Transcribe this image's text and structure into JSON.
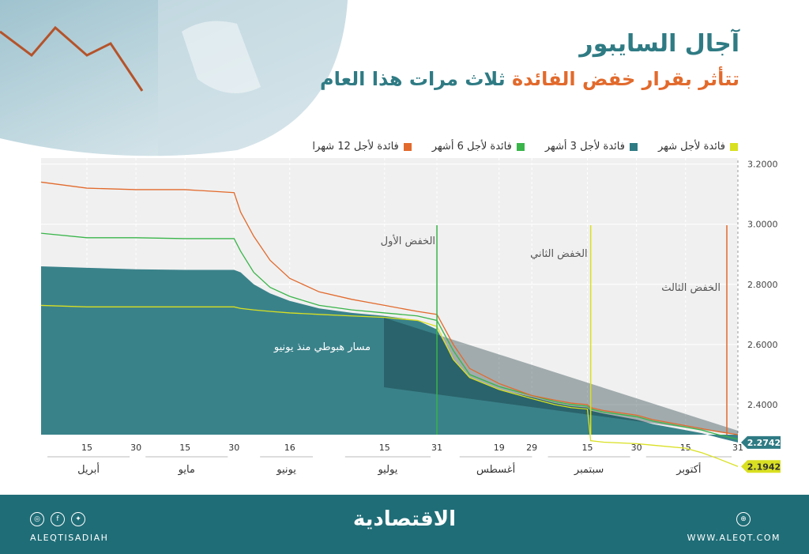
{
  "header": {
    "title": "آجال السايبور",
    "subtitle_accent": "تتأثر بقرار خفض الفائدة",
    "subtitle_rest": "ثلاث مرات هذا العام"
  },
  "colors": {
    "one_month": "#d9e021",
    "three_months": "#2f7b84",
    "six_months": "#39b54a",
    "twelve_months": "#e26a2c"
  },
  "chart_data": {
    "type": "line",
    "title": "",
    "ylim": [
      2.3,
      3.22
    ],
    "y_ticks": [
      "3.2000",
      "3.0000",
      "2.8000",
      "2.6000",
      "2.4000"
    ],
    "day_ticks": [
      "15",
      "30",
      "15",
      "30",
      "16",
      "15",
      "31",
      "19",
      "29",
      "15",
      "30",
      "15",
      "31"
    ],
    "months": [
      "أبريل",
      "مايو",
      "يونيو",
      "يوليو",
      "أغسطس",
      "سبتمبر",
      "أكتوبر"
    ],
    "x": [
      "04-01",
      "04-15",
      "04-30",
      "05-15",
      "05-30",
      "06-01",
      "06-05",
      "06-10",
      "06-16",
      "06-25",
      "07-05",
      "07-15",
      "07-25",
      "07-31",
      "08-05",
      "08-10",
      "08-19",
      "08-29",
      "09-05",
      "09-10",
      "09-15",
      "09-16",
      "09-20",
      "09-30",
      "10-05",
      "10-15",
      "10-20",
      "10-25",
      "10-31"
    ],
    "series": [
      {
        "name": "فائدة لأجل شهر",
        "key": "one_month",
        "values": [
          2.73,
          2.725,
          2.725,
          2.725,
          2.725,
          2.72,
          2.715,
          2.71,
          2.705,
          2.7,
          2.695,
          2.69,
          2.68,
          2.66,
          2.55,
          2.49,
          2.45,
          2.42,
          2.4,
          2.39,
          2.385,
          2.28,
          2.275,
          2.27,
          2.265,
          2.255,
          2.24,
          2.22,
          2.1942
        ]
      },
      {
        "name": "فائدة لأجل 3 أشهر",
        "key": "three_months",
        "values": [
          2.86,
          2.855,
          2.85,
          2.848,
          2.848,
          2.84,
          2.8,
          2.77,
          2.745,
          2.72,
          2.705,
          2.695,
          2.68,
          2.65,
          2.55,
          2.49,
          2.45,
          2.425,
          2.405,
          2.395,
          2.39,
          2.38,
          2.37,
          2.35,
          2.335,
          2.315,
          2.305,
          2.29,
          2.2742
        ]
      },
      {
        "name": "فائدة لأجل 6 أشهر",
        "key": "six_months",
        "values": [
          2.97,
          2.955,
          2.955,
          2.952,
          2.952,
          2.91,
          2.84,
          2.79,
          2.76,
          2.73,
          2.715,
          2.705,
          2.695,
          2.68,
          2.58,
          2.5,
          2.46,
          2.43,
          2.41,
          2.4,
          2.395,
          2.385,
          2.375,
          2.36,
          2.345,
          2.325,
          2.315,
          2.3,
          2.285
        ]
      },
      {
        "name": "فائدة لأجل 12 شهرا",
        "key": "twelve_months",
        "values": [
          3.14,
          3.12,
          3.115,
          3.115,
          3.105,
          3.04,
          2.96,
          2.88,
          2.82,
          2.775,
          2.75,
          2.73,
          2.71,
          2.7,
          2.6,
          2.52,
          2.47,
          2.43,
          2.415,
          2.405,
          2.4,
          2.39,
          2.38,
          2.365,
          2.35,
          2.33,
          2.32,
          2.31,
          2.3
        ]
      }
    ],
    "cuts": [
      {
        "label": "الخفض الأول",
        "x": "07-31",
        "color_key": "six_months"
      },
      {
        "label": "الخفض الثاني",
        "x": "09-16",
        "color_key": "one_month"
      },
      {
        "label": "الخفض الثالث",
        "x": "10-31",
        "color_key": "twelve_months"
      }
    ],
    "channel_label": "مسار هبوطي منذ يونيو",
    "end_labels": [
      {
        "value": "2.2742",
        "y": 2.2742,
        "color_key": "three_months"
      },
      {
        "value": "2.1942",
        "y": 2.1942,
        "color_key": "one_month"
      }
    ]
  },
  "footer": {
    "brand": "الاقتصادية",
    "handle": "ALEQTISADIAH",
    "site": "WWW.ALEQT.COM",
    "social_icons": [
      "instagram-icon",
      "facebook-icon",
      "twitter-icon"
    ]
  }
}
